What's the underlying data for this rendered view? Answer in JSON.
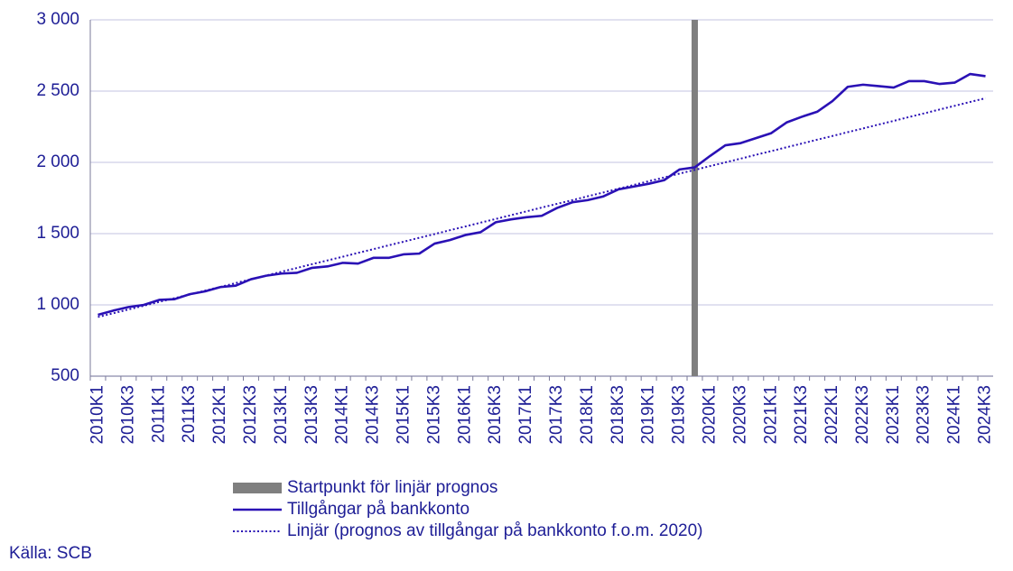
{
  "chart_data": {
    "type": "line",
    "categories": [
      "2010K1",
      null,
      "2010K3",
      null,
      "2011K1",
      null,
      "2011K3",
      null,
      "2012K1",
      null,
      "2012K3",
      null,
      "2013K1",
      null,
      "2013K3",
      null,
      "2014K1",
      null,
      "2014K3",
      null,
      "2015K1",
      null,
      "2015K3",
      null,
      "2016K1",
      null,
      "2016K3",
      null,
      "2017K1",
      null,
      "2017K3",
      null,
      "2018K1",
      null,
      "2018K3",
      null,
      "2019K1",
      null,
      "2019K3",
      null,
      "2020K1",
      null,
      "2020K3",
      null,
      "2021K1",
      null,
      "2021K3",
      null,
      "2022K1",
      null,
      "2022K3",
      null,
      "2023K1",
      null,
      "2023K3",
      null,
      "2024K1",
      null,
      "2024K3"
    ],
    "series": [
      {
        "name": "Startpunkt för linjär prognos",
        "type": "bar",
        "color": "#7f7f7f",
        "values": [
          null,
          null,
          null,
          null,
          null,
          null,
          null,
          null,
          null,
          null,
          null,
          null,
          null,
          null,
          null,
          null,
          null,
          null,
          null,
          null,
          null,
          null,
          null,
          null,
          null,
          null,
          null,
          null,
          null,
          null,
          null,
          null,
          null,
          null,
          null,
          null,
          null,
          null,
          null,
          3000,
          null,
          null,
          null,
          null,
          null,
          null,
          null,
          null,
          null,
          null,
          null,
          null,
          null,
          null,
          null,
          null,
          null,
          null,
          null
        ]
      },
      {
        "name": "Tillgångar på bankkonto",
        "type": "line",
        "linestyle": "solid",
        "color": "#2a11b5",
        "values": [
          930,
          960,
          985,
          1000,
          1035,
          1040,
          1075,
          1095,
          1125,
          1135,
          1180,
          1205,
          1220,
          1225,
          1260,
          1270,
          1295,
          1290,
          1330,
          1330,
          1355,
          1360,
          1430,
          1455,
          1490,
          1510,
          1580,
          1600,
          1615,
          1625,
          1680,
          1720,
          1735,
          1760,
          1810,
          1830,
          1850,
          1875,
          1950,
          1965,
          2045,
          2120,
          2135,
          2170,
          2205,
          2280,
          2320,
          2355,
          2430,
          2530,
          2545,
          2535,
          2525,
          2570,
          2570,
          2550,
          2560,
          2620,
          2605
        ]
      },
      {
        "name": "Linjär (prognos av tillgångar på bankkonto f.o.m. 2020)",
        "type": "line",
        "linestyle": "dotted",
        "color": "#2a11b5",
        "values": [
          915,
          941,
          968,
          994,
          1021,
          1047,
          1073,
          1100,
          1126,
          1153,
          1180,
          1206,
          1233,
          1259,
          1286,
          1312,
          1338,
          1365,
          1391,
          1418,
          1444,
          1471,
          1497,
          1524,
          1550,
          1577,
          1603,
          1630,
          1656,
          1683,
          1709,
          1735,
          1762,
          1788,
          1815,
          1841,
          1868,
          1894,
          1921,
          1947,
          1974,
          2000,
          2026,
          2053,
          2079,
          2106,
          2132,
          2159,
          2185,
          2212,
          2238,
          2265,
          2291,
          2318,
          2344,
          2371,
          2397,
          2424,
          2450
        ]
      }
    ],
    "ylim": [
      500,
      3000
    ],
    "yticks": [
      500,
      {
        "value": 1000,
        "label": "1 000"
      },
      {
        "value": 1500,
        "label": "1 500"
      },
      {
        "value": 2000,
        "label": "2 000"
      },
      {
        "value": 2500,
        "label": "2 500"
      },
      {
        "value": 3000,
        "label": "3 000"
      }
    ],
    "grid": true,
    "legend": "bottom",
    "source": "Källa: SCB"
  }
}
